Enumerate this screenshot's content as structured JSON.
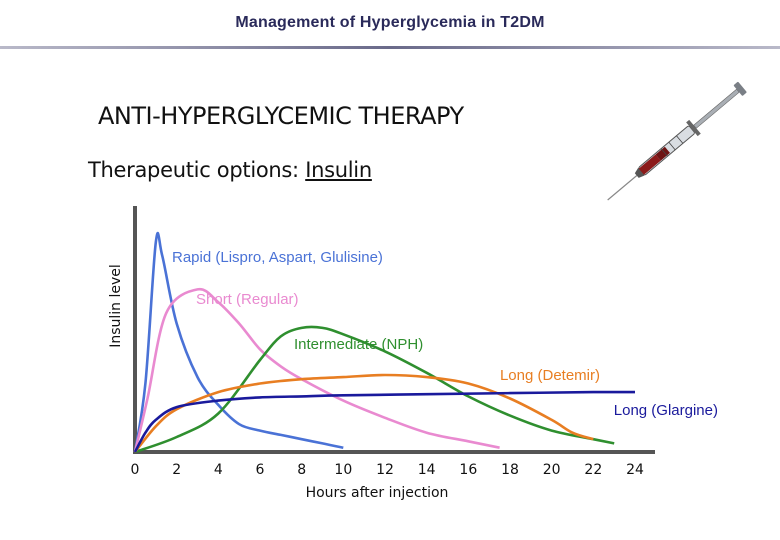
{
  "header": {
    "title": "Management of Hyperglycemia in T2DM"
  },
  "slide": {
    "title": "ANTI-HYPERGLYCEMIC THERAPY",
    "subtitle_prefix": "Therapeutic options: ",
    "subtitle_emphasis": "Insulin"
  },
  "icons": {
    "syringe": "syringe-icon"
  },
  "chart_data": {
    "type": "line",
    "title": "",
    "xlabel": "Hours after injection",
    "ylabel": "Insulin level",
    "xlim": [
      0,
      24
    ],
    "ylim": [
      0,
      1
    ],
    "xticks": [
      0,
      2,
      4,
      6,
      8,
      10,
      12,
      14,
      16,
      18,
      20,
      22,
      24
    ],
    "grid": false,
    "legend": "inline labels",
    "series": [
      {
        "name": "Rapid (Lispro, Aspart, Glulisine)",
        "color": "#4a72d6",
        "points": [
          [
            0,
            0
          ],
          [
            0.5,
            0.32
          ],
          [
            1,
            0.98
          ],
          [
            1.3,
            0.92
          ],
          [
            2,
            0.6
          ],
          [
            3,
            0.35
          ],
          [
            4,
            0.22
          ],
          [
            5,
            0.13
          ],
          [
            6,
            0.1
          ],
          [
            7,
            0.08
          ],
          [
            8,
            0.06
          ],
          [
            9,
            0.04
          ],
          [
            10,
            0.02
          ]
        ]
      },
      {
        "name": "Short (Regular)",
        "color": "#e98ad0",
        "points": [
          [
            0,
            0
          ],
          [
            0.6,
            0.25
          ],
          [
            1.5,
            0.65
          ],
          [
            3,
            0.76
          ],
          [
            4,
            0.7
          ],
          [
            5,
            0.6
          ],
          [
            6,
            0.48
          ],
          [
            7,
            0.4
          ],
          [
            8,
            0.34
          ],
          [
            10,
            0.24
          ],
          [
            12,
            0.16
          ],
          [
            14,
            0.09
          ],
          [
            16,
            0.05
          ],
          [
            17.5,
            0.02
          ]
        ]
      },
      {
        "name": "Intermediate (NPH)",
        "color": "#2f8f2f",
        "points": [
          [
            0,
            0
          ],
          [
            2,
            0.07
          ],
          [
            4,
            0.18
          ],
          [
            6,
            0.43
          ],
          [
            7,
            0.54
          ],
          [
            8,
            0.58
          ],
          [
            9,
            0.58
          ],
          [
            10,
            0.55
          ],
          [
            12,
            0.47
          ],
          [
            14,
            0.37
          ],
          [
            16,
            0.26
          ],
          [
            18,
            0.17
          ],
          [
            20,
            0.1
          ],
          [
            22,
            0.06
          ],
          [
            23,
            0.04
          ]
        ]
      },
      {
        "name": "Long (Detemir)",
        "color": "#e87e22",
        "points": [
          [
            0,
            0
          ],
          [
            1,
            0.12
          ],
          [
            2,
            0.2
          ],
          [
            4,
            0.28
          ],
          [
            6,
            0.32
          ],
          [
            8,
            0.34
          ],
          [
            10,
            0.35
          ],
          [
            12,
            0.36
          ],
          [
            14,
            0.35
          ],
          [
            16,
            0.32
          ],
          [
            18,
            0.25
          ],
          [
            20,
            0.15
          ],
          [
            21,
            0.09
          ],
          [
            22,
            0.06
          ]
        ]
      },
      {
        "name": "Long (Glargine)",
        "color": "#1a1a9c",
        "points": [
          [
            0,
            0
          ],
          [
            0.5,
            0.09
          ],
          [
            1,
            0.15
          ],
          [
            2,
            0.21
          ],
          [
            4,
            0.24
          ],
          [
            6,
            0.255
          ],
          [
            8,
            0.26
          ],
          [
            10,
            0.265
          ],
          [
            14,
            0.27
          ],
          [
            18,
            0.275
          ],
          [
            22,
            0.28
          ],
          [
            24,
            0.28
          ]
        ]
      }
    ]
  }
}
